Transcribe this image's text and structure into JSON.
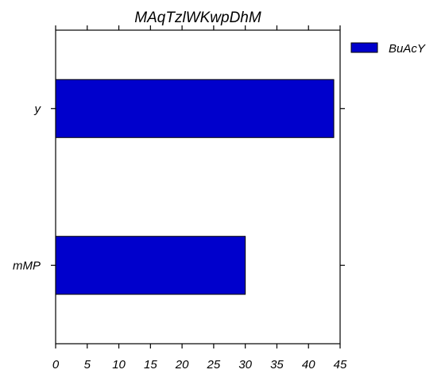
{
  "chart_data": {
    "type": "bar",
    "orientation": "horizontal",
    "title": "MAqTzlWKwpDhM",
    "xlabel": "",
    "ylabel": "",
    "categories": [
      "y",
      "mMP"
    ],
    "series": [
      {
        "name": "BuAcY",
        "values": [
          44,
          30
        ],
        "color": "#0000cc"
      }
    ],
    "xlim": [
      0,
      45
    ],
    "xticks": [
      0,
      5,
      10,
      15,
      20,
      25,
      30,
      35,
      40,
      45
    ],
    "grid": false,
    "legend_position": "top-right-outside"
  }
}
